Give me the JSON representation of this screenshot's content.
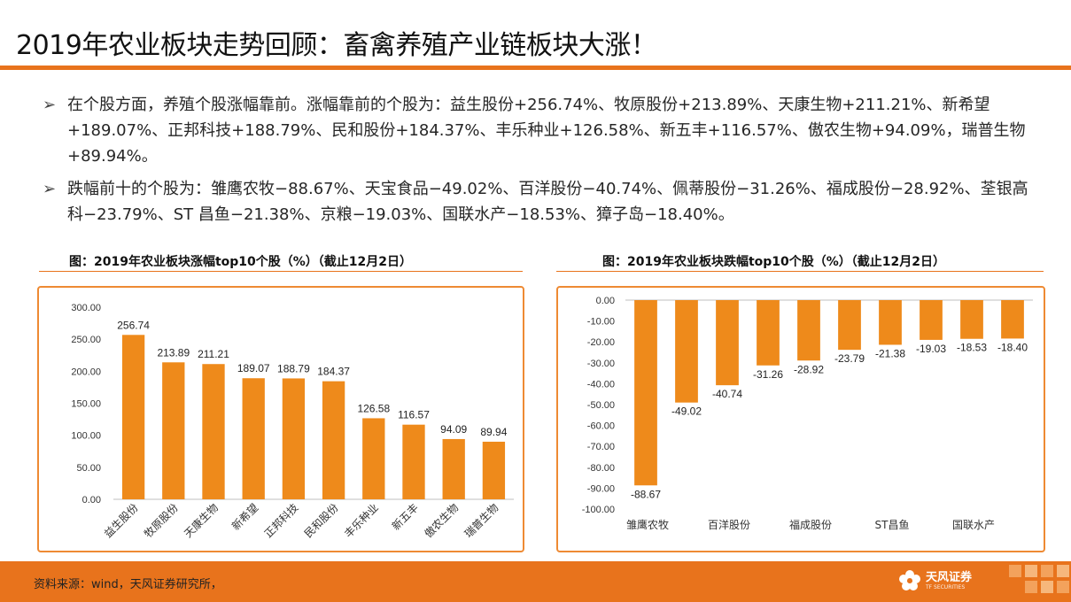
{
  "header": {
    "title": "2019年农业板块走势回顾：畜禽养殖产业链板块大涨！"
  },
  "bullets": [
    {
      "marker": "➢",
      "text": "在个股方面，养殖个股涨幅靠前。涨幅靠前的个股为：益生股份+256.74%、牧原股份+213.89%、天康生物+211.21%、新希望+189.07%、正邦科技+188.79%、民和股份+184.37%、丰乐种业+126.58%、新五丰+116.57%、傲农生物+94.09%，瑞普生物+89.94%。"
    },
    {
      "marker": "➢",
      "text": "跌幅前十的个股为：雏鹰农牧−88.67%、天宝食品−49.02%、百洋股份−40.74%、佩蒂股份−31.26%、福成股份−28.92%、荃银高科−23.79%、ST 昌鱼−21.38%、京粮−19.03%、国联水产−18.53%、獐子岛−18.40%。"
    }
  ],
  "captions": {
    "left": "图：2019年农业板块涨幅top10个股（%）（截止12月2日）",
    "right": "图：2019年农业板块跌幅top10个股（%）（截止12月2日）"
  },
  "chart_data": [
    {
      "type": "bar",
      "categories": [
        "益生股份",
        "牧原股份",
        "天康生物",
        "新希望",
        "正邦科技",
        "民和股份",
        "丰乐种业",
        "新五丰",
        "傲农生物",
        "瑞普生物"
      ],
      "values": [
        256.74,
        213.89,
        211.21,
        189.07,
        188.79,
        184.37,
        126.58,
        116.57,
        94.09,
        89.94
      ],
      "value_labels": [
        "256.74",
        "213.89",
        "211.21",
        "189.07",
        "188.79",
        "184.37",
        "126.58",
        "116.57",
        "94.09",
        "89.94"
      ],
      "ylim": [
        0,
        300
      ],
      "yticks": [
        "300.00",
        "250.00",
        "200.00",
        "150.00",
        "100.00",
        "50.00",
        "0.00"
      ],
      "color": "#ee8a1b",
      "grid": false,
      "legend": "none"
    },
    {
      "type": "bar",
      "categories": [
        "雏鹰农牧",
        "天宝食品",
        "百洋股份",
        "佩蒂股份",
        "福成股份",
        "荃银高科",
        "ST昌鱼",
        "京粮",
        "国联水产",
        "獐子岛"
      ],
      "visible_category_labels": [
        "雏鹰农牧",
        "百洋股份",
        "福成股份",
        "ST昌鱼",
        "国联水产"
      ],
      "values": [
        -88.67,
        -49.02,
        -40.74,
        -31.26,
        -28.92,
        -23.79,
        -21.38,
        -19.03,
        -18.53,
        -18.4
      ],
      "value_labels": [
        "-88.67",
        "-49.02",
        "-40.74",
        "-31.26",
        "-28.92",
        "-23.79",
        "-21.38",
        "-19.03",
        "-18.53",
        "-18.40"
      ],
      "ylim": [
        -100,
        0
      ],
      "yticks": [
        "0.00",
        "-10.00",
        "-20.00",
        "-30.00",
        "-40.00",
        "-50.00",
        "-60.00",
        "-70.00",
        "-80.00",
        "-90.00",
        "-100.00"
      ],
      "color": "#ee8a1b",
      "grid": false,
      "legend": "none"
    }
  ],
  "footer": {
    "source": "资料来源：wind，天风证券研究所，",
    "brand_name": "天风证券",
    "brand_sub": "TF SECURITIES"
  },
  "colors": {
    "accent": "#e8731c",
    "bar": "#ee8a1b",
    "box_border": "#ee8a33"
  }
}
